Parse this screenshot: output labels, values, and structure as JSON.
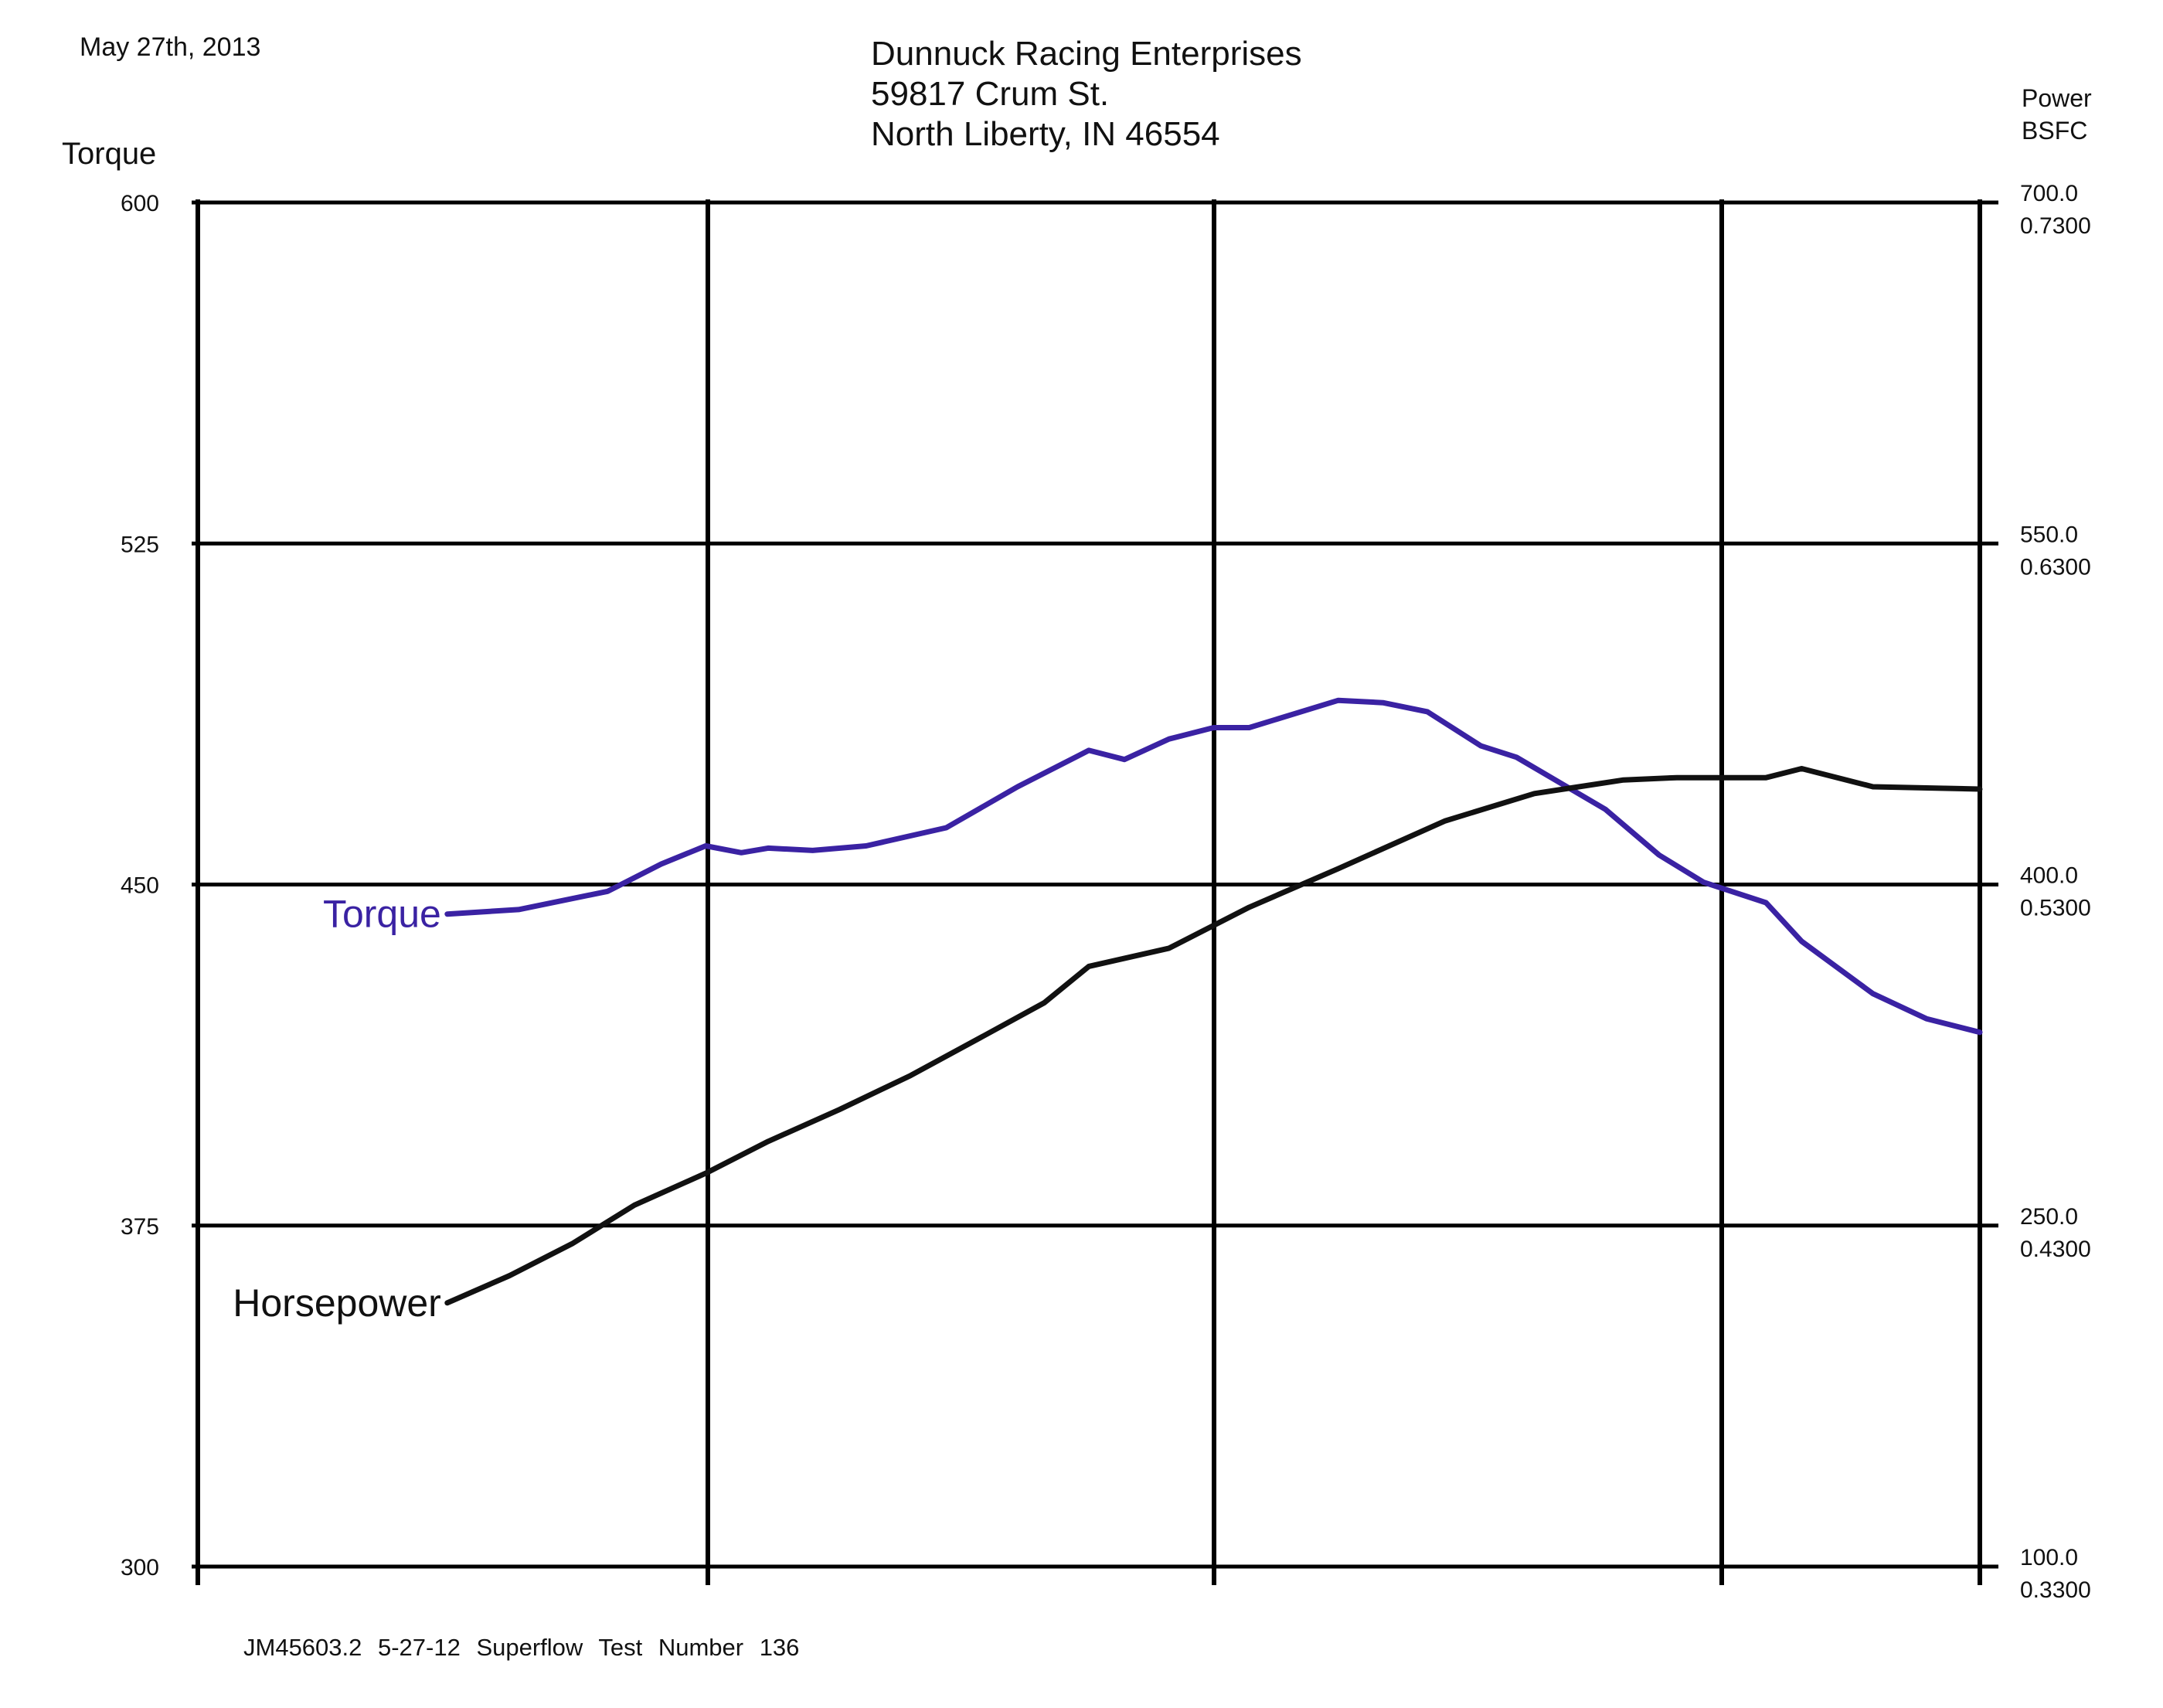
{
  "header": {
    "date": "May 27th, 2013",
    "company": [
      "Dunnuck Racing Enterprises",
      "59817 Crum St.",
      "North Liberty, IN 46554"
    ]
  },
  "chart_data": {
    "type": "line",
    "x_axis": {
      "tick_labels": [],
      "grid_lines": 4
    },
    "left_axis": {
      "title": "Torque",
      "ylim": [
        300,
        600
      ],
      "ticks": [
        "600",
        "525",
        "450",
        "375",
        "300"
      ]
    },
    "right_axis": {
      "titles": [
        "Power",
        "BSFC"
      ],
      "ticks": [
        {
          "power": "700.0",
          "bsfc": "0.7300"
        },
        {
          "power": "550.0",
          "bsfc": "0.6300"
        },
        {
          "power": "400.0",
          "bsfc": "0.5300"
        },
        {
          "power": "250.0",
          "bsfc": "0.4300"
        },
        {
          "power": "100.0",
          "bsfc": "0.3300"
        }
      ],
      "power_lim": [
        100,
        700
      ],
      "bsfc_lim": [
        0.33,
        0.73
      ]
    },
    "grid": true,
    "series": [
      {
        "name": "Torque",
        "axis": "left",
        "color": "#3a22a3",
        "x": [
          0.14,
          0.18,
          0.23,
          0.26,
          0.285,
          0.305,
          0.32,
          0.345,
          0.375,
          0.42,
          0.46,
          0.5,
          0.52,
          0.545,
          0.57,
          0.59,
          0.64,
          0.665,
          0.69,
          0.72,
          0.74,
          0.79,
          0.82,
          0.845,
          0.88,
          0.9,
          0.94,
          0.97,
          1.0
        ],
        "values": [
          443.5,
          444.5,
          448.5,
          454.5,
          458.5,
          457.0,
          458.0,
          457.5,
          458.5,
          462.5,
          471.5,
          479.5,
          477.5,
          482.0,
          484.5,
          484.5,
          490.5,
          490.0,
          488.0,
          480.5,
          478.0,
          466.5,
          456.5,
          450.5,
          446.0,
          437.5,
          426.0,
          420.5,
          417.5
        ]
      },
      {
        "name": "Horsepower",
        "axis": "right",
        "color": "#111111",
        "x": [
          0.14,
          0.175,
          0.21,
          0.245,
          0.285,
          0.32,
          0.36,
          0.4,
          0.44,
          0.475,
          0.5,
          0.545,
          0.59,
          0.64,
          0.7,
          0.75,
          0.8,
          0.83,
          0.86,
          0.88,
          0.9,
          0.94,
          1.0
        ],
        "values": [
          216,
          228,
          242,
          259,
          273,
          287,
          301,
          316,
          333,
          348,
          364,
          372,
          390,
          407,
          428,
          440,
          446,
          447,
          447,
          447,
          451,
          443,
          442
        ]
      }
    ]
  },
  "labels": {
    "torque_series": "Torque",
    "horsepower_series": "Horsepower"
  },
  "footer": {
    "text": "JM45603.2    5-27-12    Superflow   Test Number  136"
  }
}
